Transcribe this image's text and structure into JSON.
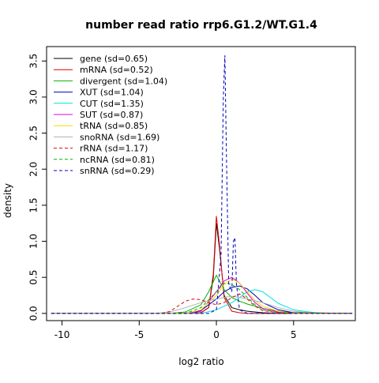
{
  "chart_data": {
    "type": "line",
    "title": "number read ratio rrp6.G1.2/WT.G1.4",
    "xlabel": "log2 ratio",
    "ylabel": "density",
    "xlim": [
      -11,
      9
    ],
    "ylim": [
      -0.1,
      3.7
    ],
    "x_ticks": [
      -10,
      -5,
      0,
      5
    ],
    "x_tick_labels": [
      "-10",
      "-5",
      "0",
      "5"
    ],
    "y_ticks": [
      0,
      0.5,
      1,
      1.5,
      2,
      2.5,
      3,
      3.5
    ],
    "y_tick_labels": [
      "0.0",
      "0.5",
      "1.0",
      "1.5",
      "2.0",
      "2.5",
      "3.0",
      "3.5"
    ],
    "grid": false,
    "legend_position": "top-left",
    "series": [
      {
        "name": "gene (sd=0.65)",
        "color": "#000000",
        "dash": "solid",
        "x": [
          -10.7,
          -3,
          -1,
          -0.5,
          -0.2,
          0,
          0.2,
          0.5,
          1,
          1.5,
          2,
          3,
          4,
          8.8
        ],
        "y": [
          0,
          0,
          0.01,
          0.08,
          0.5,
          1.25,
          0.9,
          0.25,
          0.08,
          0.05,
          0.03,
          0.01,
          0,
          0
        ]
      },
      {
        "name": "mRNA (sd=0.52)",
        "color": "#e00000",
        "dash": "solid",
        "x": [
          -10.7,
          -3,
          -1,
          -0.5,
          -0.2,
          0,
          0.2,
          0.5,
          1,
          1.5,
          2,
          3,
          8.8
        ],
        "y": [
          0,
          0,
          0.01,
          0.08,
          0.55,
          1.35,
          0.95,
          0.22,
          0.03,
          0.01,
          0,
          0,
          0
        ]
      },
      {
        "name": "divergent (sd=1.04)",
        "color": "#00b000",
        "dash": "solid",
        "x": [
          -10.7,
          -3,
          -2,
          -1,
          -0.5,
          0,
          0.5,
          1,
          1.5,
          2,
          3,
          4,
          5,
          8.8
        ],
        "y": [
          0,
          0,
          0.02,
          0.12,
          0.3,
          0.53,
          0.33,
          0.22,
          0.17,
          0.13,
          0.07,
          0.03,
          0.01,
          0
        ]
      },
      {
        "name": "XUT (sd=1.04)",
        "color": "#0000c0",
        "dash": "solid",
        "x": [
          -10.7,
          -2,
          -1,
          0,
          0.5,
          1,
          1.5,
          2,
          2.5,
          3,
          4,
          5,
          8.8
        ],
        "y": [
          0,
          0,
          0.04,
          0.2,
          0.3,
          0.36,
          0.38,
          0.34,
          0.25,
          0.15,
          0.05,
          0.01,
          0
        ]
      },
      {
        "name": "CUT (sd=1.35)",
        "color": "#00e0e0",
        "dash": "solid",
        "x": [
          -10.7,
          -1,
          0,
          1,
          1.5,
          2,
          2.5,
          3,
          3.5,
          4,
          5,
          6,
          7,
          8.8
        ],
        "y": [
          0,
          0,
          0.05,
          0.15,
          0.22,
          0.3,
          0.33,
          0.3,
          0.22,
          0.14,
          0.05,
          0.02,
          0,
          0
        ]
      },
      {
        "name": "SUT (sd=0.87)",
        "color": "#e000e0",
        "dash": "solid",
        "x": [
          -10.7,
          -2,
          -1,
          0,
          0.5,
          1,
          1.5,
          2,
          2.5,
          3,
          4,
          5,
          8.8
        ],
        "y": [
          0,
          0,
          0.03,
          0.3,
          0.45,
          0.5,
          0.42,
          0.28,
          0.15,
          0.07,
          0.02,
          0,
          0
        ]
      },
      {
        "name": "tRNA (sd=0.85)",
        "color": "#f0e000",
        "dash": "solid",
        "x": [
          -10.7,
          -2,
          -1,
          0,
          0.5,
          1,
          1.5,
          2,
          2.5,
          3,
          4,
          5,
          8.8
        ],
        "y": [
          0,
          0,
          0.05,
          0.25,
          0.4,
          0.48,
          0.42,
          0.3,
          0.18,
          0.1,
          0.03,
          0,
          0
        ]
      },
      {
        "name": "snoRNA (sd=1.69)",
        "color": "#b0b0b0",
        "dash": "solid",
        "x": [
          -10.7,
          -4,
          -3,
          -2,
          -1,
          0,
          1,
          2,
          3,
          4,
          5,
          6,
          8.8
        ],
        "y": [
          0,
          0,
          0.02,
          0.08,
          0.15,
          0.2,
          0.24,
          0.2,
          0.15,
          0.08,
          0.03,
          0.01,
          0
        ]
      },
      {
        "name": "rRNA (sd=1.17)",
        "color": "#e00000",
        "dash": "dashed",
        "x": [
          -10.7,
          -3.5,
          -3,
          -2.5,
          -2,
          -1.5,
          -1,
          -0.5,
          0,
          0.5,
          1,
          1.5,
          2,
          2.5,
          3,
          4,
          8.8
        ],
        "y": [
          0,
          0,
          0.03,
          0.1,
          0.17,
          0.2,
          0.19,
          0.15,
          0.12,
          0.15,
          0.22,
          0.27,
          0.2,
          0.1,
          0.04,
          0.01,
          0
        ]
      },
      {
        "name": "ncRNA (sd=0.81)",
        "color": "#00b000",
        "dash": "dashed",
        "x": [
          -10.7,
          -2,
          -1,
          0,
          0.5,
          1,
          1.5,
          2,
          2.5,
          3,
          4,
          8.8
        ],
        "y": [
          0,
          0,
          0.08,
          0.3,
          0.42,
          0.4,
          0.33,
          0.22,
          0.12,
          0.05,
          0.01,
          0
        ]
      },
      {
        "name": "snRNA (sd=0.29)",
        "color": "#0000c0",
        "dash": "dashed",
        "x": [
          -10.7,
          -0.5,
          0,
          0.3,
          0.45,
          0.55,
          0.65,
          0.8,
          1,
          1.1,
          1.2,
          1.3,
          1.5,
          2,
          8.8
        ],
        "y": [
          0,
          0,
          0.05,
          0.8,
          3.0,
          3.58,
          2.2,
          0.4,
          0.3,
          1.0,
          1.05,
          0.4,
          0.05,
          0,
          0
        ]
      }
    ]
  }
}
